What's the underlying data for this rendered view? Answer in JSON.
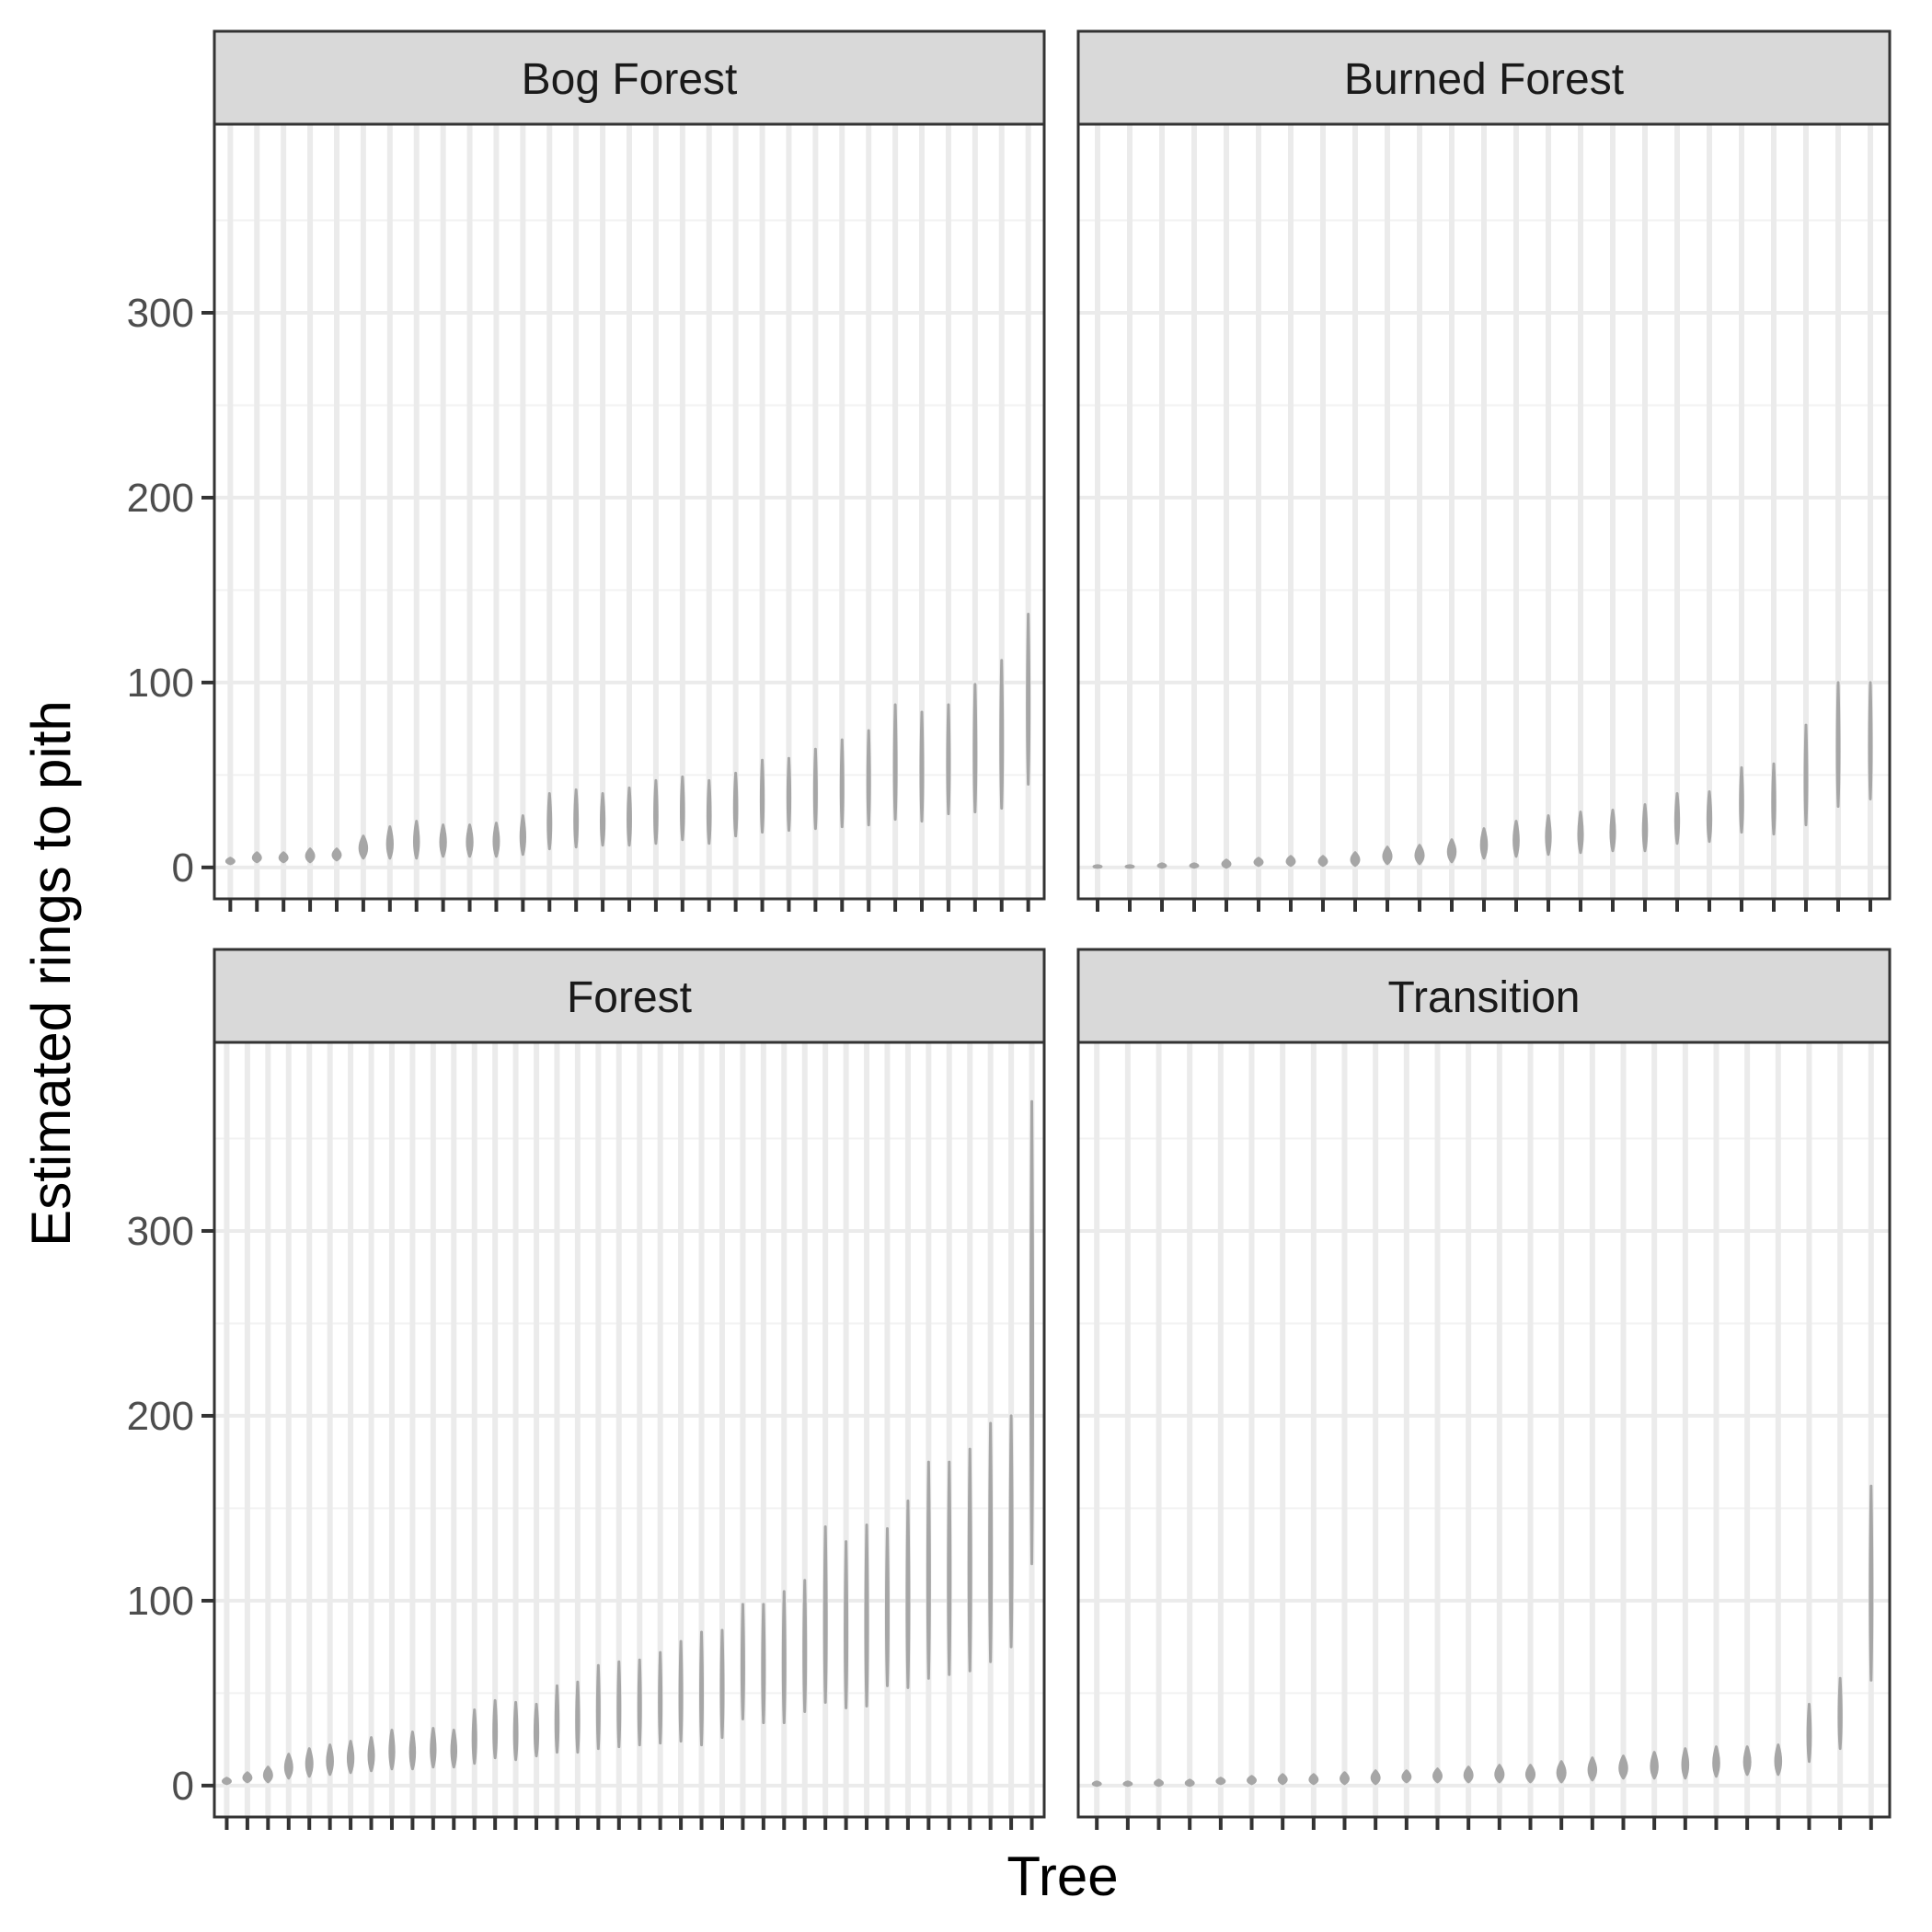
{
  "chart_data": {
    "type": "violin",
    "xlabel": "Tree",
    "ylabel": "Estimated rings to pith",
    "ylim": [
      -17,
      402
    ],
    "yticks": [
      0,
      100,
      200,
      300
    ],
    "grid": true,
    "facets": [
      {
        "label": "Bog Forest",
        "series": [
          {
            "min": 2,
            "max": 5
          },
          {
            "min": 3,
            "max": 8
          },
          {
            "min": 3,
            "max": 8
          },
          {
            "min": 3,
            "max": 10
          },
          {
            "min": 4,
            "max": 10
          },
          {
            "min": 5,
            "max": 17
          },
          {
            "min": 5,
            "max": 22
          },
          {
            "min": 5,
            "max": 25
          },
          {
            "min": 6,
            "max": 23
          },
          {
            "min": 6,
            "max": 23
          },
          {
            "min": 6,
            "max": 24
          },
          {
            "min": 7,
            "max": 28
          },
          {
            "min": 10,
            "max": 40
          },
          {
            "min": 11,
            "max": 42
          },
          {
            "min": 12,
            "max": 40
          },
          {
            "min": 12,
            "max": 43
          },
          {
            "min": 13,
            "max": 47
          },
          {
            "min": 15,
            "max": 49
          },
          {
            "min": 13,
            "max": 47
          },
          {
            "min": 17,
            "max": 51
          },
          {
            "min": 19,
            "max": 58
          },
          {
            "min": 20,
            "max": 59
          },
          {
            "min": 21,
            "max": 64
          },
          {
            "min": 22,
            "max": 69
          },
          {
            "min": 23,
            "max": 74
          },
          {
            "min": 26,
            "max": 88
          },
          {
            "min": 25,
            "max": 84
          },
          {
            "min": 29,
            "max": 88
          },
          {
            "min": 30,
            "max": 99
          },
          {
            "min": 32,
            "max": 112
          },
          {
            "min": 45,
            "max": 137
          }
        ]
      },
      {
        "label": "Burned Forest",
        "series": [
          {
            "min": 0,
            "max": 1
          },
          {
            "min": 0,
            "max": 1
          },
          {
            "min": 0,
            "max": 2
          },
          {
            "min": 0,
            "max": 2
          },
          {
            "min": 0,
            "max": 4
          },
          {
            "min": 1,
            "max": 5
          },
          {
            "min": 1,
            "max": 6
          },
          {
            "min": 1,
            "max": 6
          },
          {
            "min": 1,
            "max": 8
          },
          {
            "min": 2,
            "max": 11
          },
          {
            "min": 2,
            "max": 12
          },
          {
            "min": 3,
            "max": 15
          },
          {
            "min": 5,
            "max": 21
          },
          {
            "min": 6,
            "max": 25
          },
          {
            "min": 7,
            "max": 28
          },
          {
            "min": 8,
            "max": 30
          },
          {
            "min": 9,
            "max": 31
          },
          {
            "min": 9,
            "max": 34
          },
          {
            "min": 13,
            "max": 40
          },
          {
            "min": 14,
            "max": 41
          },
          {
            "min": 19,
            "max": 54
          },
          {
            "min": 18,
            "max": 56
          },
          {
            "min": 23,
            "max": 77
          },
          {
            "min": 33,
            "max": 100
          },
          {
            "min": 37,
            "max": 100
          }
        ]
      },
      {
        "label": "Forest",
        "series": [
          {
            "min": 1,
            "max": 4
          },
          {
            "min": 2,
            "max": 7
          },
          {
            "min": 2,
            "max": 10
          },
          {
            "min": 4,
            "max": 17
          },
          {
            "min": 5,
            "max": 20
          },
          {
            "min": 6,
            "max": 22
          },
          {
            "min": 7,
            "max": 24
          },
          {
            "min": 8,
            "max": 26
          },
          {
            "min": 9,
            "max": 30
          },
          {
            "min": 9,
            "max": 29
          },
          {
            "min": 10,
            "max": 31
          },
          {
            "min": 10,
            "max": 30
          },
          {
            "min": 12,
            "max": 41
          },
          {
            "min": 15,
            "max": 46
          },
          {
            "min": 14,
            "max": 45
          },
          {
            "min": 16,
            "max": 44
          },
          {
            "min": 18,
            "max": 54
          },
          {
            "min": 18,
            "max": 56
          },
          {
            "min": 20,
            "max": 65
          },
          {
            "min": 21,
            "max": 67
          },
          {
            "min": 22,
            "max": 68
          },
          {
            "min": 23,
            "max": 72
          },
          {
            "min": 24,
            "max": 78
          },
          {
            "min": 22,
            "max": 83
          },
          {
            "min": 26,
            "max": 84
          },
          {
            "min": 36,
            "max": 98
          },
          {
            "min": 34,
            "max": 98
          },
          {
            "min": 34,
            "max": 105
          },
          {
            "min": 40,
            "max": 111
          },
          {
            "min": 45,
            "max": 140
          },
          {
            "min": 42,
            "max": 132
          },
          {
            "min": 43,
            "max": 141
          },
          {
            "min": 54,
            "max": 139
          },
          {
            "min": 53,
            "max": 154
          },
          {
            "min": 58,
            "max": 175
          },
          {
            "min": 60,
            "max": 175
          },
          {
            "min": 62,
            "max": 182
          },
          {
            "min": 67,
            "max": 196
          },
          {
            "min": 75,
            "max": 200
          },
          {
            "min": 120,
            "max": 370
          }
        ]
      },
      {
        "label": "Transition",
        "series": [
          {
            "min": 0,
            "max": 2
          },
          {
            "min": 0,
            "max": 2
          },
          {
            "min": 0,
            "max": 3
          },
          {
            "min": 0,
            "max": 3
          },
          {
            "min": 1,
            "max": 4
          },
          {
            "min": 1,
            "max": 5
          },
          {
            "min": 1,
            "max": 6
          },
          {
            "min": 1,
            "max": 6
          },
          {
            "min": 1,
            "max": 7
          },
          {
            "min": 1,
            "max": 8
          },
          {
            "min": 2,
            "max": 8
          },
          {
            "min": 2,
            "max": 9
          },
          {
            "min": 2,
            "max": 10
          },
          {
            "min": 2,
            "max": 11
          },
          {
            "min": 2,
            "max": 11
          },
          {
            "min": 2,
            "max": 13
          },
          {
            "min": 3,
            "max": 15
          },
          {
            "min": 4,
            "max": 16
          },
          {
            "min": 4,
            "max": 18
          },
          {
            "min": 4,
            "max": 20
          },
          {
            "min": 5,
            "max": 21
          },
          {
            "min": 6,
            "max": 21
          },
          {
            "min": 6,
            "max": 22
          },
          {
            "min": 13,
            "max": 44
          },
          {
            "min": 20,
            "max": 58
          },
          {
            "min": 57,
            "max": 162
          }
        ]
      }
    ]
  }
}
